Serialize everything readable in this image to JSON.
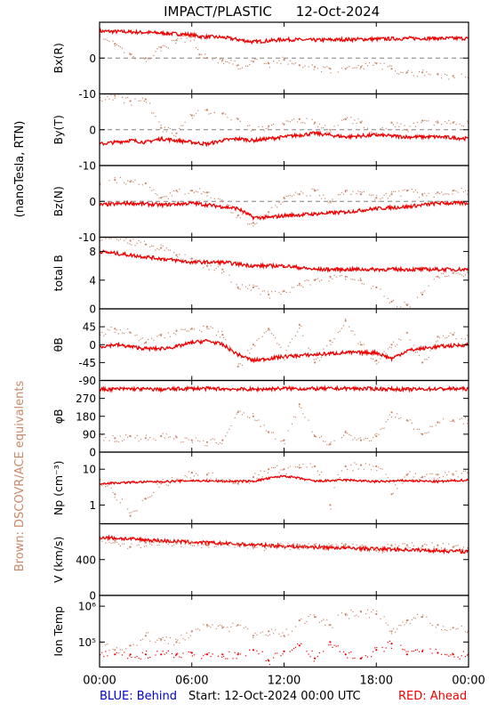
{
  "header": {
    "title": "IMPACT/PLASTIC",
    "date": "12-Oct-2024"
  },
  "side_labels": {
    "field_units": "(nanoTesla, RTN)",
    "brown_note": "Brown: DSCOVR/ACE equivalents"
  },
  "footer": {
    "blue_label": "BLUE: Behind",
    "start_label": "Start: 12-Oct-2024 00:00 UTC",
    "red_label": "RED: Ahead"
  },
  "colors": {
    "ahead": "#ee0000",
    "behind": "#0000cc",
    "dscovr_ace": "#c8896a",
    "dashed_zero": "#808080"
  },
  "chart_data": {
    "type": "line",
    "x_axis": {
      "range_hours": [
        0,
        24
      ],
      "tick_labels": [
        "00:00",
        "06:00",
        "12:00",
        "18:00",
        "00:00"
      ]
    },
    "panels": [
      {
        "id": "bx",
        "ylabel": "Bx(R)",
        "ylim": [
          -10,
          10
        ],
        "yticks": [
          "0",
          "-10"
        ],
        "zero_line": true,
        "series": [
          {
            "color": "ahead",
            "style": "line",
            "x": [
              0,
              2,
              4,
              6,
              6.5,
              8,
              10,
              12,
              14,
              16,
              18,
              20,
              22,
              24
            ],
            "y": [
              7.5,
              7.3,
              7,
              6.5,
              6,
              5.8,
              4.5,
              5.2,
              5,
              5.2,
              5.3,
              5.5,
              5.5,
              5.5
            ]
          },
          {
            "color": "dscovr_ace",
            "style": "scatter",
            "x": [
              0,
              1,
              2,
              3,
              4,
              5,
              6,
              6.5,
              7,
              8,
              9,
              10,
              11,
              12,
              13,
              14,
              15,
              16,
              17,
              18,
              19,
              20,
              21,
              22,
              23,
              24
            ],
            "y": [
              6,
              4,
              1,
              0,
              3,
              5,
              6,
              1,
              0,
              -0.5,
              -2,
              -1,
              -1.5,
              -0.5,
              -2,
              -2.5,
              -3,
              -3,
              -2.5,
              -1.5,
              -3,
              -4,
              -4,
              -4.5,
              -5,
              -5.5
            ]
          }
        ]
      },
      {
        "id": "by",
        "ylabel": "By(T)",
        "ylim": [
          -10,
          10
        ],
        "yticks": [
          "0",
          "-10"
        ],
        "zero_line": true,
        "series": [
          {
            "color": "ahead",
            "style": "line",
            "x": [
              0,
              1,
              2,
              3,
              4,
              5,
              6,
              7,
              8,
              9,
              10,
              11,
              12,
              14,
              16,
              18,
              20,
              22,
              24
            ],
            "y": [
              -4,
              -3.5,
              -3,
              -3.5,
              -2.5,
              -3,
              -3.5,
              -4,
              -3,
              -2.5,
              -3,
              -2.5,
              -2,
              -1,
              -2,
              -1.5,
              -2,
              -2,
              -2.5
            ]
          },
          {
            "color": "dscovr_ace",
            "style": "scatter",
            "x": [
              0,
              1,
              2,
              3,
              4,
              5,
              6,
              7,
              8,
              9,
              10,
              11,
              12,
              13,
              14,
              15,
              16,
              17,
              18,
              19,
              20,
              21,
              22,
              23,
              24
            ],
            "y": [
              9,
              9.5,
              8,
              8.5,
              0.5,
              -1,
              4,
              5.5,
              4.5,
              3,
              0,
              1,
              1.5,
              3,
              2,
              0,
              3,
              2,
              -1,
              2,
              0,
              2.5,
              2,
              2,
              2
            ]
          }
        ]
      },
      {
        "id": "bz",
        "ylabel": "Bz(N)",
        "ylim": [
          -10,
          10
        ],
        "yticks": [
          "0",
          "-10"
        ],
        "zero_line": true,
        "series": [
          {
            "color": "ahead",
            "style": "line",
            "x": [
              0,
              2,
              4,
              6,
              7,
              8,
              9,
              10,
              11,
              12,
              14,
              16,
              18,
              20,
              22,
              24
            ],
            "y": [
              -1,
              -0.5,
              -1,
              -0.5,
              -1,
              -1.5,
              -2,
              -4.5,
              -4.5,
              -4,
              -3.5,
              -3,
              -2,
              -1.5,
              -0.5,
              -0.5
            ]
          },
          {
            "color": "dscovr_ace",
            "style": "scatter",
            "x": [
              0,
              1,
              2,
              3,
              4,
              5,
              6,
              7,
              8,
              9,
              10,
              11,
              12,
              13,
              14,
              15,
              16,
              17,
              18,
              19,
              20,
              21,
              22,
              23,
              24
            ],
            "y": [
              5,
              6,
              5.5,
              5,
              1,
              3,
              3,
              2.5,
              0,
              -4,
              -6,
              -3,
              1,
              2,
              3,
              0,
              3,
              2,
              1,
              2,
              3,
              2,
              2.5,
              3,
              3
            ]
          }
        ]
      },
      {
        "id": "btotal",
        "ylabel": "total B",
        "ylim": [
          0,
          10
        ],
        "yticks": [
          "8",
          "4",
          "0"
        ],
        "zero_line": false,
        "series": [
          {
            "color": "ahead",
            "style": "line",
            "x": [
              0,
              2,
              4,
              6,
              8,
              10,
              12,
              14,
              16,
              18,
              20,
              22,
              24
            ],
            "y": [
              8,
              7.5,
              7,
              6.5,
              6.5,
              6,
              6,
              5.5,
              5.5,
              5.5,
              5.5,
              5.5,
              5.5
            ]
          },
          {
            "color": "dscovr_ace",
            "style": "scatter",
            "x": [
              0,
              1,
              2,
              3,
              4,
              5,
              6,
              7,
              8,
              9,
              10,
              11,
              12,
              13,
              14,
              15,
              16,
              17,
              18,
              19,
              20,
              21,
              22,
              23,
              24
            ],
            "y": [
              10,
              10,
              9.5,
              9,
              8.5,
              7.5,
              7,
              6,
              5.5,
              3,
              3,
              2,
              2.5,
              3.5,
              4,
              4.5,
              4.5,
              4,
              3,
              1,
              0.5,
              2,
              4.5,
              5,
              5
            ]
          }
        ]
      },
      {
        "id": "theta",
        "ylabel": "θB",
        "ylim": [
          -90,
          90
        ],
        "yticks": [
          "45",
          "0",
          "-45",
          "-90"
        ],
        "zero_line": false,
        "series": [
          {
            "color": "ahead",
            "style": "line",
            "x": [
              0,
              1,
              2,
              3,
              4,
              5,
              6,
              7,
              8,
              9,
              10,
              11,
              12,
              14,
              16,
              18,
              19,
              20,
              22,
              24
            ],
            "y": [
              -5,
              0,
              -5,
              -10,
              -10,
              -5,
              5,
              10,
              0,
              -25,
              -40,
              -35,
              -30,
              -25,
              -20,
              -20,
              -35,
              -15,
              -5,
              0
            ]
          },
          {
            "color": "dscovr_ace",
            "style": "scatter",
            "x": [
              0,
              1,
              2,
              3,
              4,
              5,
              6,
              7,
              8,
              9,
              10,
              11,
              12,
              13,
              14,
              15,
              16,
              17,
              18,
              19,
              20,
              21,
              22,
              23,
              24
            ],
            "y": [
              30,
              40,
              30,
              5,
              25,
              35,
              40,
              45,
              25,
              -55,
              0,
              40,
              -30,
              50,
              -45,
              10,
              60,
              0,
              -40,
              0,
              30,
              -45,
              20,
              25,
              20
            ]
          }
        ]
      },
      {
        "id": "phi",
        "ylabel": "φB",
        "ylim": [
          0,
          360
        ],
        "yticks": [
          "270",
          "180",
          "90",
          "0"
        ],
        "zero_line": false,
        "series": [
          {
            "color": "ahead",
            "style": "line",
            "x": [
              0,
              2,
              4,
              6,
              8,
              10,
              12,
              14,
              16,
              18,
              20,
              22,
              24
            ],
            "y": [
              315,
              318,
              315,
              320,
              318,
              315,
              320,
              318,
              320,
              318,
              315,
              318,
              318
            ]
          },
          {
            "color": "dscovr_ace",
            "style": "scatter",
            "x": [
              0,
              1,
              2,
              3,
              4,
              5,
              6,
              7,
              8,
              9,
              10,
              11,
              12,
              13,
              14,
              15,
              16,
              17,
              18,
              19,
              20,
              21,
              22,
              23,
              24
            ],
            "y": [
              80,
              70,
              80,
              70,
              80,
              75,
              60,
              50,
              60,
              200,
              180,
              100,
              60,
              240,
              80,
              40,
              100,
              60,
              80,
              200,
              160,
              90,
              150,
              160,
              160
            ]
          }
        ]
      },
      {
        "id": "np",
        "ylabel": "Np (cm⁻³)",
        "ylim_log": [
          0.3,
          30
        ],
        "yticks": [
          "10",
          "1"
        ],
        "zero_line": false,
        "series": [
          {
            "color": "ahead",
            "style": "line",
            "x": [
              0,
              2,
              4,
              6,
              8,
              10,
              12,
              14,
              16,
              18,
              20,
              22,
              24
            ],
            "y": [
              4,
              4.3,
              4.5,
              4.8,
              4.6,
              4.6,
              6.5,
              4.6,
              5,
              4.5,
              4.8,
              4.5,
              5
            ]
          },
          {
            "color": "dscovr_ace",
            "style": "scatter",
            "x": [
              0,
              1,
              2,
              3,
              4,
              5,
              6,
              7,
              8,
              9,
              10,
              11,
              12,
              13,
              14,
              15,
              16,
              17,
              18,
              19,
              20,
              21,
              22,
              23,
              24
            ],
            "y": [
              5,
              2,
              0.5,
              1.5,
              4,
              5,
              8,
              7,
              5,
              4,
              6,
              10,
              10,
              11,
              12,
              1,
              12,
              13,
              12,
              2,
              7,
              6,
              7,
              7,
              8
            ]
          }
        ]
      },
      {
        "id": "v",
        "ylabel": "V (km/s)",
        "ylim": [
          0,
          800
        ],
        "yticks": [
          "400",
          "0"
        ],
        "zero_line": false,
        "series": [
          {
            "color": "ahead",
            "style": "line",
            "x": [
              0,
              4,
              8,
              12,
              16,
              20,
              24
            ],
            "y": [
              650,
              610,
              580,
              550,
              530,
              510,
              490
            ]
          },
          {
            "color": "dscovr_ace",
            "style": "scatter",
            "x": [
              0,
              1,
              2,
              3,
              4,
              5,
              6,
              7,
              8,
              9,
              10,
              11,
              12,
              13,
              14,
              15,
              16,
              17,
              18,
              19,
              20,
              21,
              22,
              23,
              24
            ],
            "y": [
              620,
              610,
              540,
              590,
              600,
              580,
              600,
              560,
              570,
              560,
              540,
              550,
              550,
              560,
              560,
              550,
              570,
              540,
              500,
              560,
              560,
              550,
              560,
              540,
              530
            ]
          }
        ]
      },
      {
        "id": "temp",
        "ylabel": "Ion Temp",
        "ylim_log": [
          20000,
          2000000
        ],
        "yticks": [
          "10⁶",
          "10⁵"
        ],
        "zero_line": false,
        "series": [
          {
            "color": "ahead",
            "style": "scatter",
            "x": [
              1,
              2,
              3,
              4,
              5,
              6,
              7,
              8,
              9,
              10,
              11,
              12,
              13,
              14,
              15,
              16,
              17,
              18,
              19,
              20,
              21,
              22,
              23,
              24
            ],
            "y": [
              45000,
              45000,
              45000,
              45000,
              45000,
              50000,
              45000,
              45000,
              45000,
              60000,
              30000,
              55000,
              80000,
              35000,
              100000,
              45000,
              35000,
              60000,
              90000,
              45000,
              55000,
              50000,
              45000,
              45000
            ]
          },
          {
            "color": "dscovr_ace",
            "style": "scatter",
            "x": [
              0,
              1,
              2,
              3,
              4,
              5,
              6,
              7,
              8,
              9,
              10,
              11,
              12,
              13,
              14,
              15,
              16,
              17,
              18,
              19,
              20,
              21,
              22,
              23,
              24
            ],
            "y": [
              100000,
              60000,
              80000,
              150000,
              120000,
              100000,
              200000,
              300000,
              250000,
              300000,
              150000,
              200000,
              150000,
              400000,
              500000,
              300000,
              600000,
              700000,
              600000,
              200000,
              400000,
              500000,
              300000,
              250000,
              200000
            ]
          }
        ]
      }
    ]
  }
}
